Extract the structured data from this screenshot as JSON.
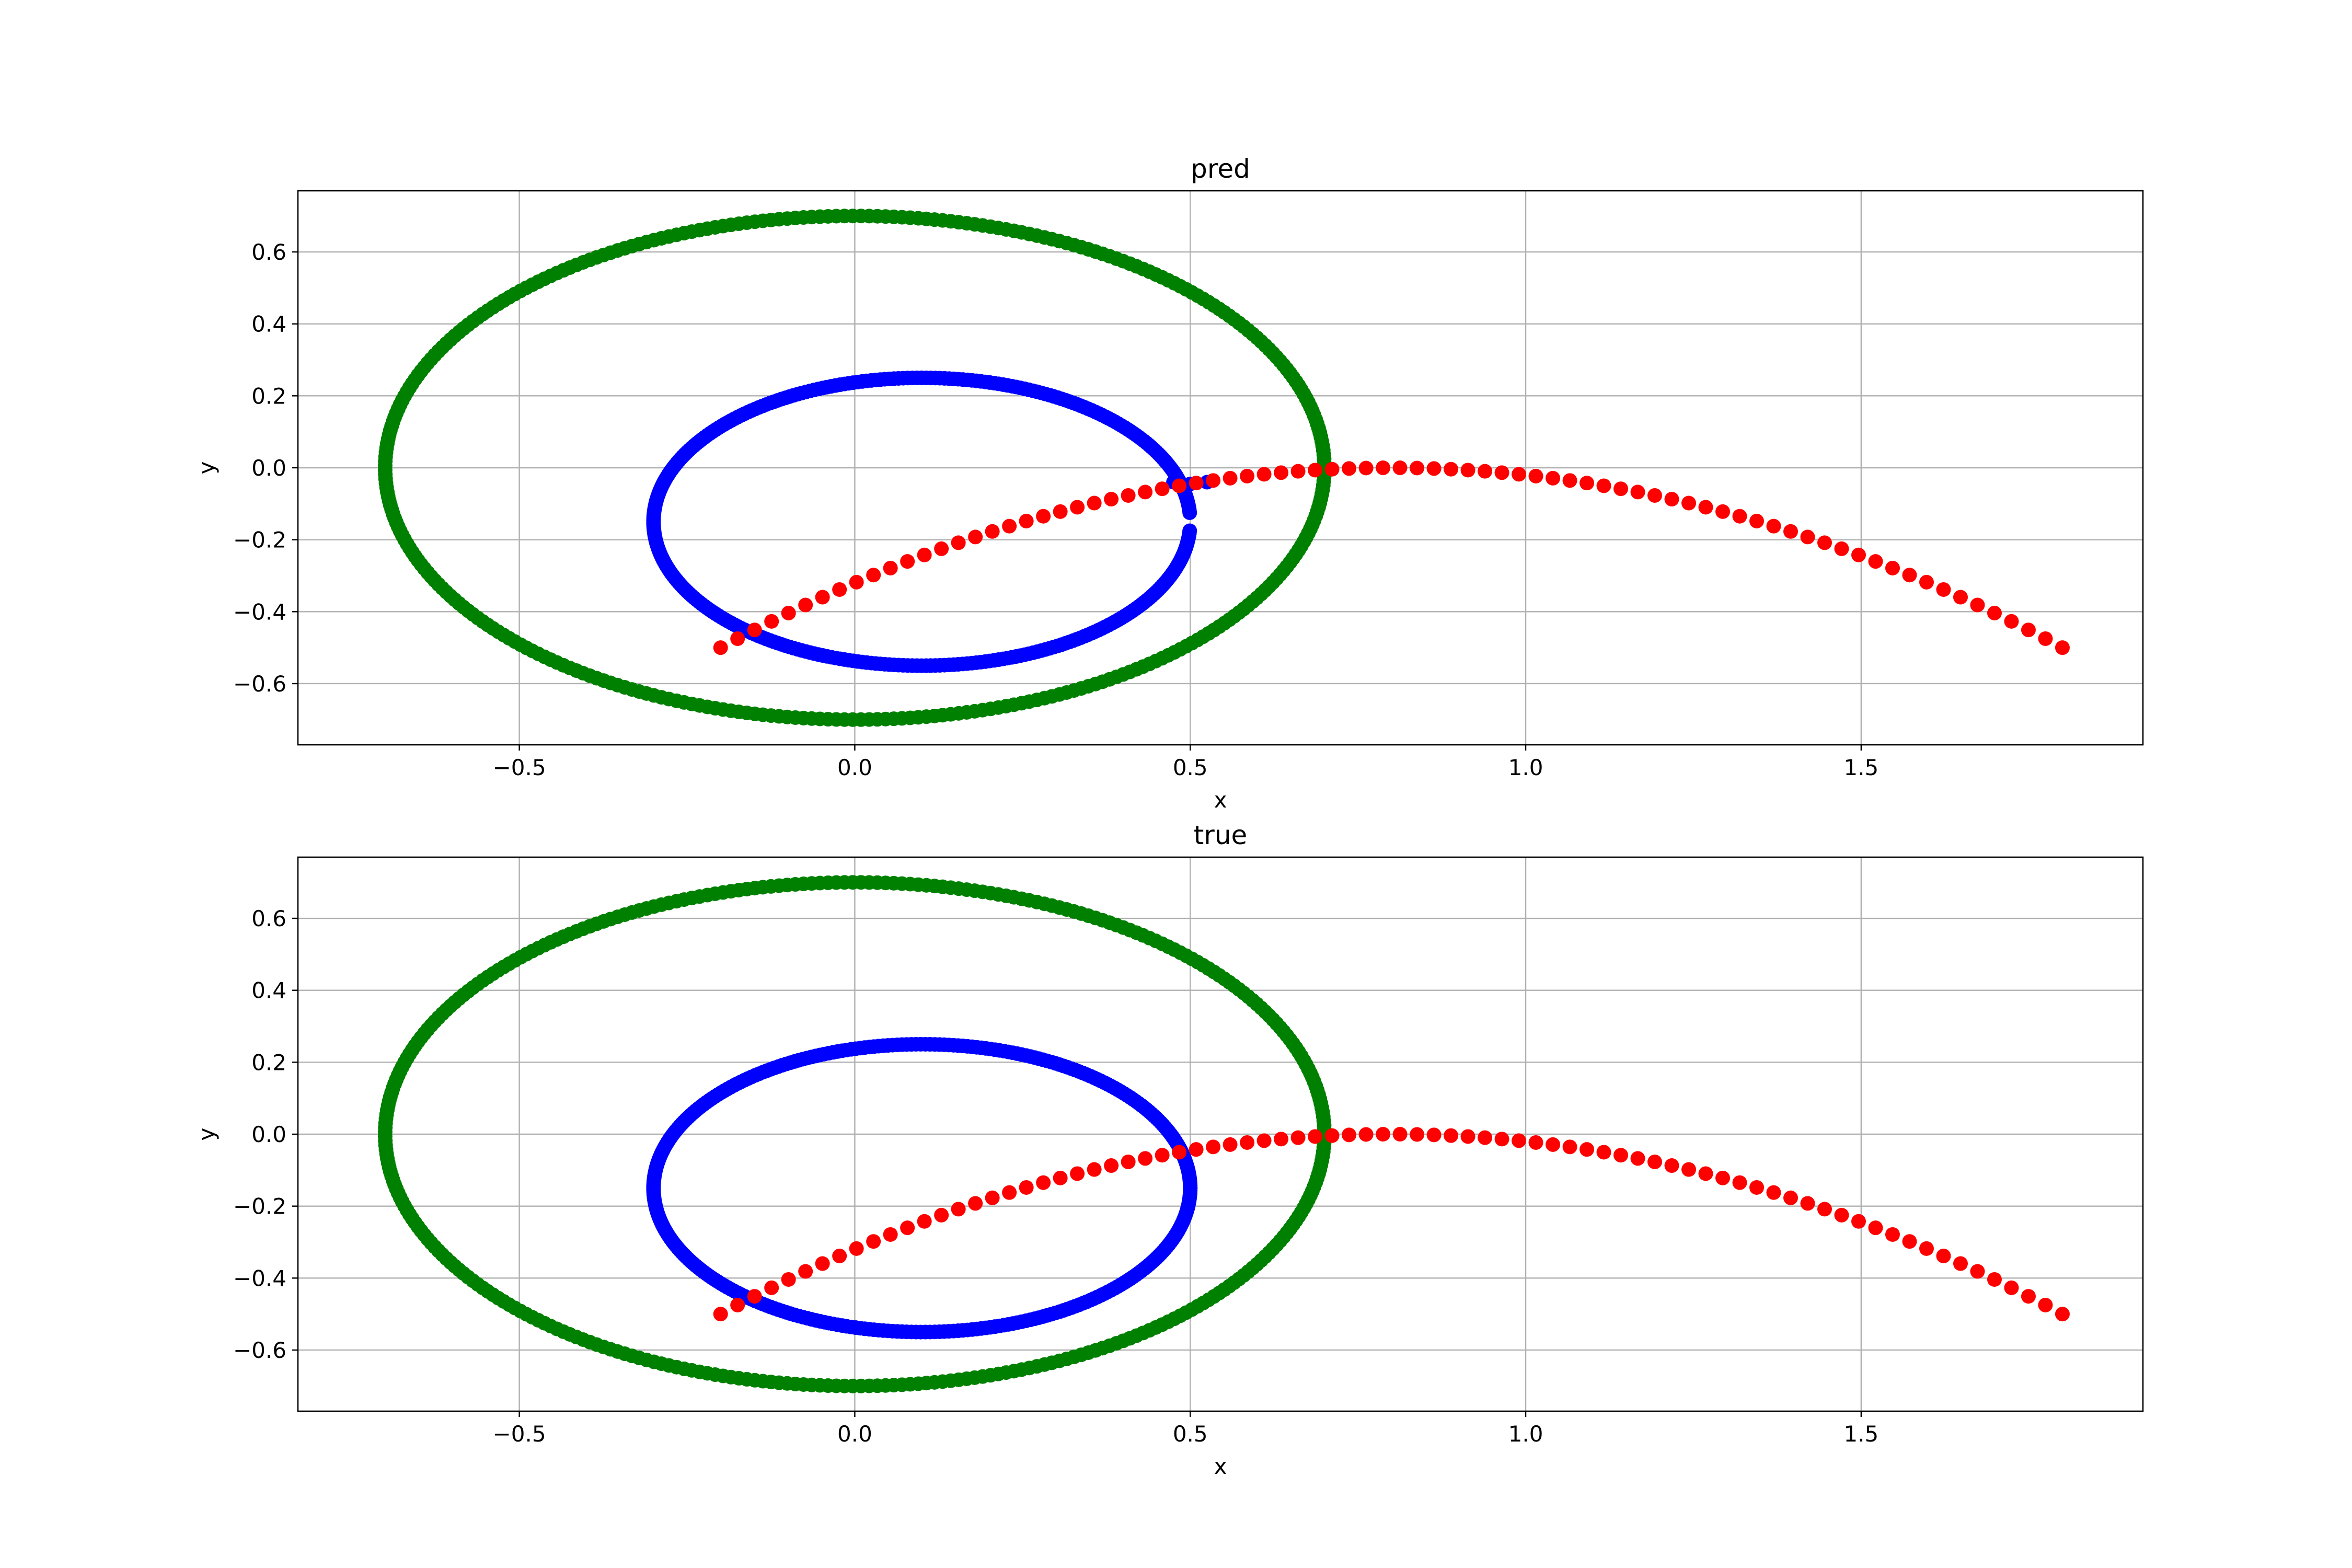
{
  "chart_data": [
    {
      "type": "scatter",
      "title": "pred",
      "xlabel": "x",
      "ylabel": "y",
      "xlim": [
        -0.83,
        1.92
      ],
      "ylim": [
        -0.77,
        0.77
      ],
      "xticks": [
        -0.5,
        0.0,
        0.5,
        1.0,
        1.5
      ],
      "xtick_labels": [
        "−0.5",
        "0.0",
        "0.5",
        "1.0",
        "1.5"
      ],
      "yticks": [
        -0.6,
        -0.4,
        -0.2,
        0.0,
        0.2,
        0.4,
        0.6
      ],
      "ytick_labels": [
        "−0.6",
        "−0.4",
        "−0.2",
        "0.0",
        "0.2",
        "0.4",
        "0.6"
      ],
      "grid": true,
      "series": [
        {
          "color": "#008000",
          "shape": "ellipse",
          "center": [
            0.0,
            0.0
          ],
          "radii": [
            0.7,
            0.7
          ],
          "n_points": 360,
          "gap_fraction": 0
        },
        {
          "color": "#0000ff",
          "shape": "ellipse",
          "center": [
            0.1,
            -0.15
          ],
          "radii": [
            0.4,
            0.4
          ],
          "n_points": 360,
          "gap_fraction": 0.02,
          "extra_points": [
            [
              0.475,
              -0.04
            ],
            [
              0.5,
              -0.045
            ],
            [
              0.525,
              -0.04
            ]
          ]
        },
        {
          "color": "#ff0000",
          "shape": "parabola",
          "x_range": [
            -0.2,
            1.8
          ],
          "vertex": [
            0.8,
            0.0
          ],
          "coef": -0.5,
          "n_points": 80
        }
      ]
    },
    {
      "type": "scatter",
      "title": "true",
      "xlabel": "x",
      "ylabel": "y",
      "xlim": [
        -0.83,
        1.92
      ],
      "ylim": [
        -0.77,
        0.77
      ],
      "xticks": [
        -0.5,
        0.0,
        0.5,
        1.0,
        1.5
      ],
      "xtick_labels": [
        "−0.5",
        "0.0",
        "0.5",
        "1.0",
        "1.5"
      ],
      "yticks": [
        -0.6,
        -0.4,
        -0.2,
        0.0,
        0.2,
        0.4,
        0.6
      ],
      "ytick_labels": [
        "−0.6",
        "−0.4",
        "−0.2",
        "0.0",
        "0.2",
        "0.4",
        "0.6"
      ],
      "grid": true,
      "series": [
        {
          "color": "#008000",
          "shape": "ellipse",
          "center": [
            0.0,
            0.0
          ],
          "radii": [
            0.7,
            0.7
          ],
          "n_points": 360,
          "gap_fraction": 0
        },
        {
          "color": "#0000ff",
          "shape": "ellipse",
          "center": [
            0.1,
            -0.15
          ],
          "radii": [
            0.4,
            0.4
          ],
          "n_points": 360,
          "gap_fraction": 0
        },
        {
          "color": "#ff0000",
          "shape": "parabola",
          "x_range": [
            -0.2,
            1.8
          ],
          "vertex": [
            0.8,
            0.0
          ],
          "coef": -0.5,
          "n_points": 80
        }
      ]
    }
  ]
}
